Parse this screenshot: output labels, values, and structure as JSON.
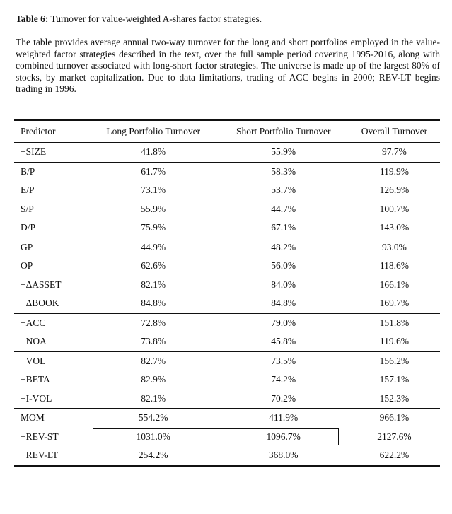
{
  "caption": {
    "label": "Table 6:",
    "title": "Turnover for value-weighted A-shares factor strategies."
  },
  "description": "The table provides average annual two-way turnover for the long and short portfolios employed in the value-weighted factor strategies described in the text, over the full sample period covering 1995-2016, along with combined turnover associated with long-short factor strategies. The universe is made up of the largest 80% of stocks, by market capitalization. Due to data limitations, trading of ACC begins in 2000; REV-LT begins trading in 1996.",
  "table": {
    "headers": [
      "Predictor",
      "Long Portfolio Turnover",
      "Short Portfolio Turnover",
      "Overall Turnover"
    ],
    "groups": [
      [
        {
          "predictor": "−SIZE",
          "long": "41.8%",
          "short": "55.9%",
          "overall": "97.7%"
        }
      ],
      [
        {
          "predictor": "B/P",
          "long": "61.7%",
          "short": "58.3%",
          "overall": "119.9%"
        },
        {
          "predictor": "E/P",
          "long": "73.1%",
          "short": "53.7%",
          "overall": "126.9%"
        },
        {
          "predictor": "S/P",
          "long": "55.9%",
          "short": "44.7%",
          "overall": "100.7%"
        },
        {
          "predictor": "D/P",
          "long": "75.9%",
          "short": "67.1%",
          "overall": "143.0%"
        }
      ],
      [
        {
          "predictor": "GP",
          "long": "44.9%",
          "short": "48.2%",
          "overall": "93.0%"
        },
        {
          "predictor": "OP",
          "long": "62.6%",
          "short": "56.0%",
          "overall": "118.6%"
        },
        {
          "predictor": "−ΔASSET",
          "long": "82.1%",
          "short": "84.0%",
          "overall": "166.1%"
        },
        {
          "predictor": "−ΔBOOK",
          "long": "84.8%",
          "short": "84.8%",
          "overall": "169.7%"
        }
      ],
      [
        {
          "predictor": "−ACC",
          "long": "72.8%",
          "short": "79.0%",
          "overall": "151.8%"
        },
        {
          "predictor": "−NOA",
          "long": "73.8%",
          "short": "45.8%",
          "overall": "119.6%"
        }
      ],
      [
        {
          "predictor": "−VOL",
          "long": "82.7%",
          "short": "73.5%",
          "overall": "156.2%"
        },
        {
          "predictor": "−BETA",
          "long": "82.9%",
          "short": "74.2%",
          "overall": "157.1%"
        },
        {
          "predictor": "−I-VOL",
          "long": "82.1%",
          "short": "70.2%",
          "overall": "152.3%"
        }
      ],
      [
        {
          "predictor": "MOM",
          "long": "554.2%",
          "short": "411.9%",
          "overall": "966.1%"
        },
        {
          "predictor": "−REV-ST",
          "long": "1031.0%",
          "short": "1096.7%",
          "overall": "2127.6%"
        },
        {
          "predictor": "−REV-LT",
          "long": "254.2%",
          "short": "368.0%",
          "overall": "622.2%"
        }
      ]
    ]
  }
}
